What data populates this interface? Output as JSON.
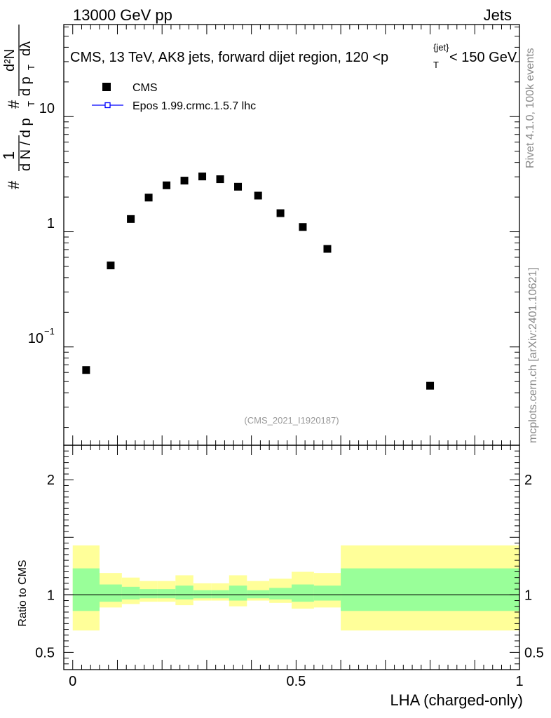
{
  "header": {
    "left": "13000 GeV pp",
    "right": "Jets"
  },
  "side_labels": {
    "rivet": "Rivet 4.1.0,  100k events",
    "mcplots": "mcplots.cern.ch [arXiv:2401.10621]"
  },
  "chart_data": [
    {
      "type": "scatter",
      "title": "CMS, 13 TeV, AK8 jets, forward dijet region, 120 <p_T^{jet}< 150 GeV",
      "title_parts": {
        "main": "CMS, 13 TeV, AK8 jets, forward dijet region, 120 <p",
        "sub": "T",
        "sup": "{jet}",
        "tail": "< 150 GeV"
      },
      "ylabel": "1/(dN/dp_T) d^2N/(dp_T dλ)",
      "ylabel_parts": {
        "hash": "#",
        "one": "1",
        "den": "d N / d p",
        "num": "d²N",
        "den2": "d p",
        "T": "T",
        "dlambda": "dλ"
      },
      "yscale": "log",
      "ylim": [
        0.014,
        63
      ],
      "xlim": [
        -0.02,
        1.0
      ],
      "yticks_major": [
        {
          "v": 10,
          "label": "10"
        },
        {
          "v": 1,
          "label": "1"
        },
        {
          "v": 0.1,
          "label": "10",
          "exp": "−1"
        }
      ],
      "legend_position": "top-left",
      "legend": [
        {
          "name": "CMS",
          "marker": "square",
          "color": "#000000"
        },
        {
          "name": "Epos 1.99.crmc.1.5.7 lhc",
          "marker": "line-open-square",
          "color": "#0000ff"
        }
      ],
      "watermark": "(CMS_2021_I1920187)",
      "series": [
        {
          "name": "CMS",
          "x": [
            0.03,
            0.085,
            0.13,
            0.17,
            0.21,
            0.25,
            0.29,
            0.33,
            0.37,
            0.415,
            0.465,
            0.515,
            0.57,
            0.8
          ],
          "y": [
            0.063,
            0.51,
            1.29,
            1.98,
            2.53,
            2.78,
            3.02,
            2.86,
            2.46,
            2.06,
            1.45,
            1.1,
            0.71,
            0.046
          ]
        }
      ]
    },
    {
      "type": "area",
      "ylabel": "Ratio to CMS",
      "xlabel": "LHA (charged-only)",
      "xlim": [
        -0.02,
        1.0
      ],
      "ylim": [
        0.35,
        2.3
      ],
      "xticks": [
        {
          "v": 0,
          "label": "0"
        },
        {
          "v": 0.5,
          "label": "0.5"
        },
        {
          "v": 1,
          "label": "1"
        }
      ],
      "yticks": [
        {
          "v": 2,
          "label": "2"
        },
        {
          "v": 1,
          "label": "1"
        },
        {
          "v": 0.5,
          "label": "0.5"
        }
      ],
      "reference_line": 1.0,
      "band_colors": {
        "outer": "#ffff99",
        "inner": "#99ff99"
      },
      "bins": [
        {
          "lo": 0.0,
          "hi": 0.06,
          "outer": [
            0.69,
            1.43
          ],
          "inner": [
            0.86,
            1.23
          ]
        },
        {
          "lo": 0.06,
          "hi": 0.11,
          "outer": [
            0.89,
            1.19
          ],
          "inner": [
            0.94,
            1.09
          ]
        },
        {
          "lo": 0.11,
          "hi": 0.15,
          "outer": [
            0.92,
            1.15
          ],
          "inner": [
            0.96,
            1.07
          ]
        },
        {
          "lo": 0.15,
          "hi": 0.19,
          "outer": [
            0.94,
            1.12
          ],
          "inner": [
            0.97,
            1.05
          ]
        },
        {
          "lo": 0.19,
          "hi": 0.23,
          "outer": [
            0.94,
            1.12
          ],
          "inner": [
            0.97,
            1.05
          ]
        },
        {
          "lo": 0.23,
          "hi": 0.27,
          "outer": [
            0.91,
            1.17
          ],
          "inner": [
            0.96,
            1.08
          ]
        },
        {
          "lo": 0.27,
          "hi": 0.31,
          "outer": [
            0.95,
            1.1
          ],
          "inner": [
            0.97,
            1.04
          ]
        },
        {
          "lo": 0.31,
          "hi": 0.35,
          "outer": [
            0.95,
            1.1
          ],
          "inner": [
            0.97,
            1.04
          ]
        },
        {
          "lo": 0.35,
          "hi": 0.39,
          "outer": [
            0.9,
            1.17
          ],
          "inner": [
            0.95,
            1.08
          ]
        },
        {
          "lo": 0.39,
          "hi": 0.44,
          "outer": [
            0.95,
            1.12
          ],
          "inner": [
            0.97,
            1.04
          ]
        },
        {
          "lo": 0.44,
          "hi": 0.49,
          "outer": [
            0.93,
            1.14
          ],
          "inner": [
            0.96,
            1.06
          ]
        },
        {
          "lo": 0.49,
          "hi": 0.54,
          "outer": [
            0.88,
            1.2
          ],
          "inner": [
            0.94,
            1.09
          ]
        },
        {
          "lo": 0.54,
          "hi": 0.6,
          "outer": [
            0.89,
            1.19
          ],
          "inner": [
            0.95,
            1.08
          ]
        },
        {
          "lo": 0.6,
          "hi": 1.0,
          "outer": [
            0.69,
            1.43
          ],
          "inner": [
            0.86,
            1.23
          ]
        }
      ]
    }
  ]
}
